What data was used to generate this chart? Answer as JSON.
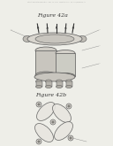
{
  "bg_color": "#efefea",
  "header_text": "Patent Application Publication   Nov. 18, 2014   Sheet 13 of 56   US 2014/0338746 A1",
  "fig_a_label": "Figure 42a",
  "fig_b_label": "Figure 42b",
  "page_bg": "#eeeee8"
}
